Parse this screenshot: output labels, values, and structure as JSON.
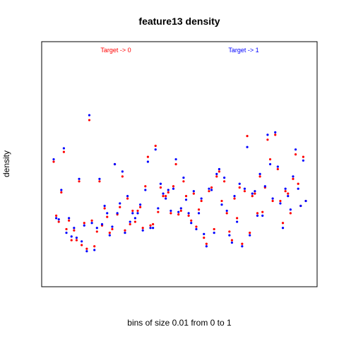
{
  "chart_data": {
    "type": "scatter",
    "title": "feature13 density",
    "xlabel": "bins of size 0.01 from 0 to 1",
    "ylabel": "density",
    "xlim": [
      1,
      100
    ],
    "ylim": [
      0,
      1
    ],
    "grid": false,
    "legend": [
      {
        "label": "Target -> 0",
        "color": "#ff0000",
        "position": "top-left"
      },
      {
        "label": "Target -> 1",
        "color": "#0000ff",
        "position": "top-right"
      }
    ],
    "series": [
      {
        "name": "Target -> 0",
        "color": "#ff0000",
        "values": [
          0.51,
          0.29,
          0.265,
          0.385,
          0.55,
          0.235,
          0.27,
          0.19,
          0.23,
          0.19,
          0.43,
          0.17,
          0.26,
          0.155,
          0.68,
          0.27,
          0.165,
          0.225,
          0.43,
          0.25,
          0.32,
          0.285,
          0.22,
          0.235,
          0.5,
          0.295,
          0.325,
          0.45,
          0.23,
          0.36,
          0.255,
          0.31,
          0.265,
          0.31,
          0.325,
          0.24,
          0.41,
          0.53,
          0.25,
          0.255,
          0.575,
          0.305,
          0.405,
          0.37,
          0.37,
          0.385,
          0.3,
          0.41,
          0.5,
          0.295,
          0.31,
          0.43,
          0.37,
          0.29,
          0.27,
          0.38,
          0.245,
          0.315,
          0.35,
          0.2,
          0.175,
          0.39,
          0.405,
          0.235,
          0.45,
          0.47,
          0.35,
          0.43,
          0.3,
          0.225,
          0.19,
          0.36,
          0.28,
          0.405,
          0.175,
          0.39,
          0.615,
          0.22,
          0.37,
          0.38,
          0.3,
          0.45,
          0.305,
          0.405,
          0.6,
          0.52,
          0.35,
          0.62,
          0.48,
          0.35,
          0.26,
          0.39,
          0.38,
          0.3,
          0.44,
          0.54,
          0.42,
          0.33,
          0.53,
          0.35
        ]
      },
      {
        "name": "Target -> 1",
        "color": "#0000ff",
        "values": [
          0.52,
          0.28,
          0.275,
          0.395,
          0.565,
          0.22,
          0.28,
          0.205,
          0.24,
          0.2,
          0.44,
          0.185,
          0.25,
          0.145,
          0.7,
          0.26,
          0.15,
          0.24,
          0.44,
          0.255,
          0.33,
          0.3,
          0.21,
          0.245,
          0.5,
          0.3,
          0.34,
          0.47,
          0.22,
          0.37,
          0.265,
          0.3,
          0.28,
          0.3,
          0.335,
          0.23,
          0.395,
          0.51,
          0.24,
          0.24,
          0.56,
          0.32,
          0.42,
          0.38,
          0.36,
          0.395,
          0.31,
          0.4,
          0.52,
          0.305,
          0.32,
          0.445,
          0.355,
          0.3,
          0.26,
          0.39,
          0.235,
          0.3,
          0.36,
          0.215,
          0.165,
          0.4,
          0.395,
          0.22,
          0.46,
          0.48,
          0.335,
          0.445,
          0.31,
          0.21,
          0.18,
          0.37,
          0.265,
          0.42,
          0.165,
          0.4,
          0.57,
          0.21,
          0.38,
          0.39,
          0.29,
          0.46,
          0.29,
          0.41,
          0.62,
          0.5,
          0.36,
          0.63,
          0.49,
          0.34,
          0.24,
          0.4,
          0.37,
          0.315,
          0.45,
          0.56,
          0.4,
          0.33,
          0.515,
          0.35
        ]
      }
    ]
  }
}
